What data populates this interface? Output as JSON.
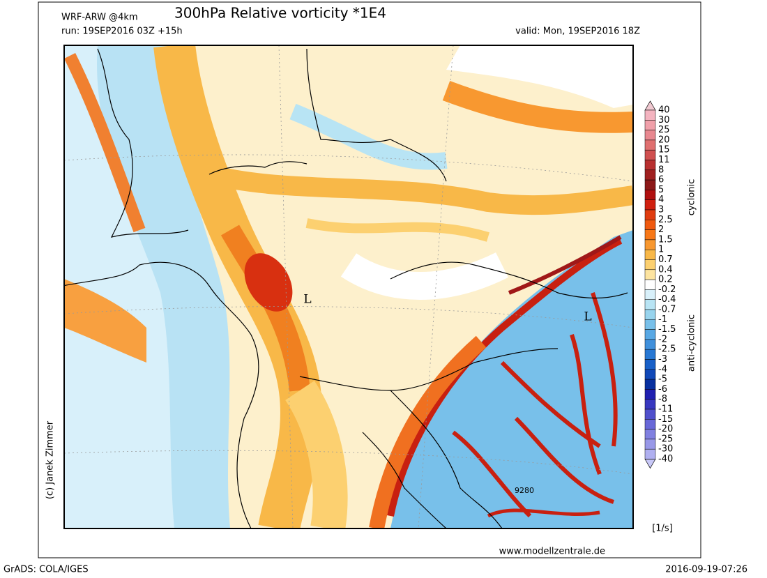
{
  "header": {
    "model": "WRF-ARW @4km",
    "title": "300hPa Relative vorticity *1E4",
    "run": "run: 19SEP2016 03Z +15h",
    "valid": "valid: Mon, 19SEP2016 18Z"
  },
  "map": {
    "labels": [
      "L",
      "L",
      "9280"
    ]
  },
  "legend": {
    "labels": [
      "40",
      "30",
      "25",
      "20",
      "15",
      "11",
      "8",
      "6",
      "5",
      "4",
      "3",
      "2.5",
      "2",
      "1.5",
      "1",
      "0.7",
      "0.4",
      "0.2",
      "-0.2",
      "-0.4",
      "-0.7",
      "-1",
      "-1.5",
      "-2",
      "-2.5",
      "-3",
      "-4",
      "-5",
      "-6",
      "-8",
      "-11",
      "-15",
      "-20",
      "-25",
      "-30",
      "-40"
    ],
    "colors": [
      "#f0c8d0",
      "#f4b4c0",
      "#f0a0aa",
      "#e88890",
      "#e07070",
      "#d05050",
      "#b83030",
      "#a02020",
      "#8c1818",
      "#b01010",
      "#d02010",
      "#e03c10",
      "#f05a10",
      "#f87818",
      "#f89830",
      "#f8b848",
      "#fcd070",
      "#fde4a0",
      "#ffffff",
      "#d8f0fa",
      "#b8e4f4",
      "#98d4ee",
      "#78c0ea",
      "#58a8e4",
      "#4090dc",
      "#2878d4",
      "#1860c8",
      "#1048b8",
      "#0830a0",
      "#2020b0",
      "#3838c0",
      "#5050cc",
      "#6868d8",
      "#8080e0",
      "#9898e8",
      "#b0b0f0",
      "#c8c8f8"
    ],
    "cyclonic": "cyclonic",
    "anticyclonic": "anti-cyclonic",
    "unit": "[1/s]"
  },
  "footer": {
    "credit": "(c) Janek Zimmer",
    "website": "www.modellzentrale.de",
    "software": "GrADS: COLA/IGES",
    "timestamp": "2016-09-19-07:26"
  }
}
